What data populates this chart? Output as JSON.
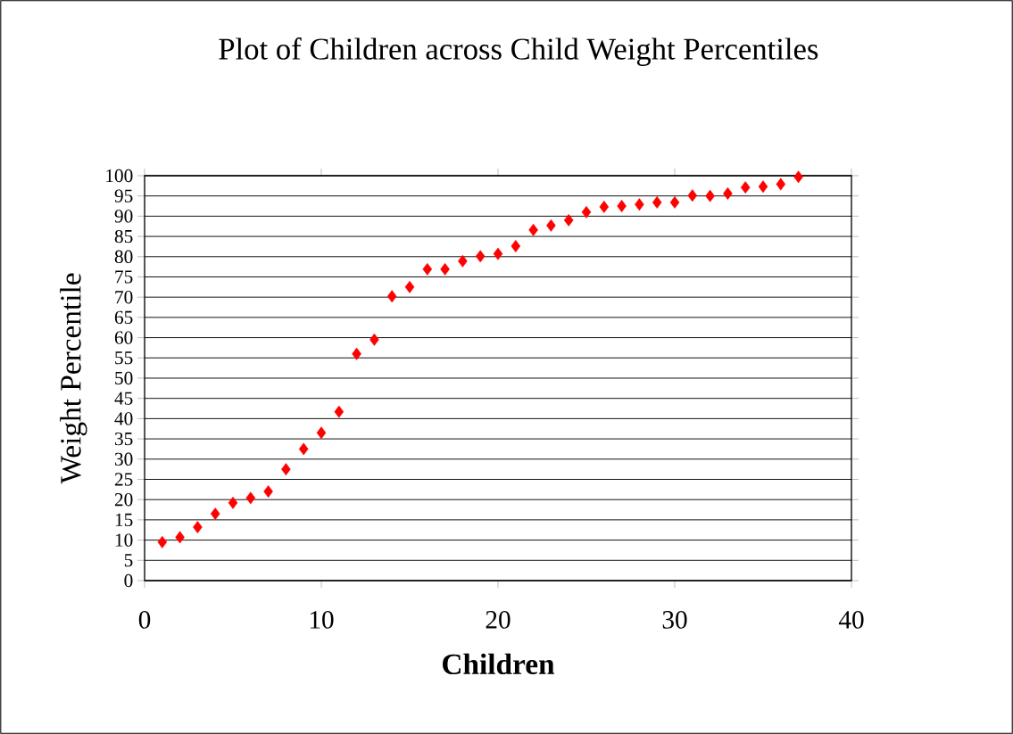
{
  "chart_data": {
    "type": "scatter",
    "title": "Plot of Children across Child Weight Percentiles",
    "xlabel": "Children",
    "ylabel": "Weight Percentile",
    "x": [
      1,
      2,
      3,
      4,
      5,
      6,
      7,
      8,
      9,
      10,
      11,
      12,
      13,
      14,
      15,
      16,
      17,
      18,
      19,
      20,
      21,
      22,
      23,
      24,
      25,
      26,
      27,
      28,
      29,
      30,
      31,
      32,
      33,
      34,
      35,
      36,
      37
    ],
    "values": [
      9.5,
      10.7,
      13.2,
      16.5,
      19.2,
      20.4,
      22,
      27.5,
      32.5,
      36.5,
      41.7,
      56,
      59.5,
      70.2,
      72.5,
      76.9,
      76.9,
      78.9,
      80.1,
      80.7,
      82.6,
      86.6,
      87.7,
      89,
      91,
      92.3,
      92.5,
      92.9,
      93.4,
      93.4,
      95.1,
      95,
      95.6,
      97.1,
      97.3,
      97.9,
      99.7
    ],
    "color": "#ff0000",
    "marker": "diamond",
    "xlim": [
      0,
      40
    ],
    "xticks": [
      0,
      10,
      20,
      30,
      40
    ],
    "ylim": [
      0,
      100
    ],
    "yticks": [
      0,
      5,
      10,
      15,
      20,
      25,
      30,
      35,
      40,
      45,
      50,
      55,
      60,
      65,
      70,
      75,
      80,
      85,
      90,
      95,
      100
    ],
    "grid": "y"
  }
}
